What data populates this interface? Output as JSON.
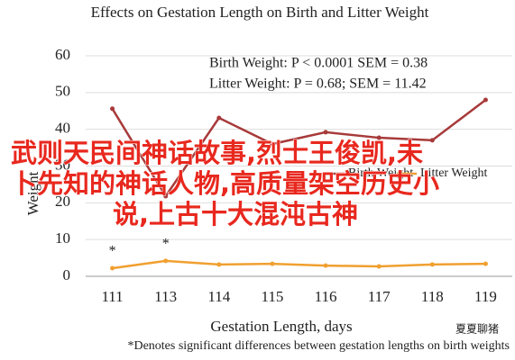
{
  "chart_data": {
    "type": "line",
    "title": "Effects on Gestation Length on Birth and Litter Weight",
    "x_label": "Gestation Length, days",
    "y_label": "Weight",
    "categories": [
      "111",
      "113",
      "114",
      "115",
      "116",
      "117",
      "118",
      "119"
    ],
    "series": [
      {
        "name": "Birth Weight",
        "color": "#a83a3a",
        "values": [
          45.6,
          21.8,
          43.1,
          36,
          39.2,
          37.7,
          37,
          48
        ]
      },
      {
        "name": "Litter Weight",
        "color": "#f0a030",
        "values": [
          2.2,
          4.2,
          3.2,
          3.4,
          2.9,
          2.7,
          3.2,
          3.4
        ]
      }
    ],
    "markers": [
      "*",
      "*",
      null,
      null,
      null,
      null,
      null,
      null
    ],
    "annotations": [
      "Birth Weight: P < 0.0001 SEM = 0.38",
      "Litter Weight: P = 0.68; SEM = 11.42"
    ],
    "footnote": "*Denotes significant differences between gestation lengths on birth weights",
    "ylim": [
      0,
      60
    ],
    "yticks": [
      0,
      10,
      20,
      30,
      40,
      50,
      60
    ],
    "grid": true
  },
  "overlay": {
    "lines": [
      "武则天民间神话故事,烈士王俊凯,未",
      "卜先知的神话人物,高质量架空历史小",
      "说,上古十大混沌古神"
    ]
  },
  "watermark": "夏夏聊猪"
}
